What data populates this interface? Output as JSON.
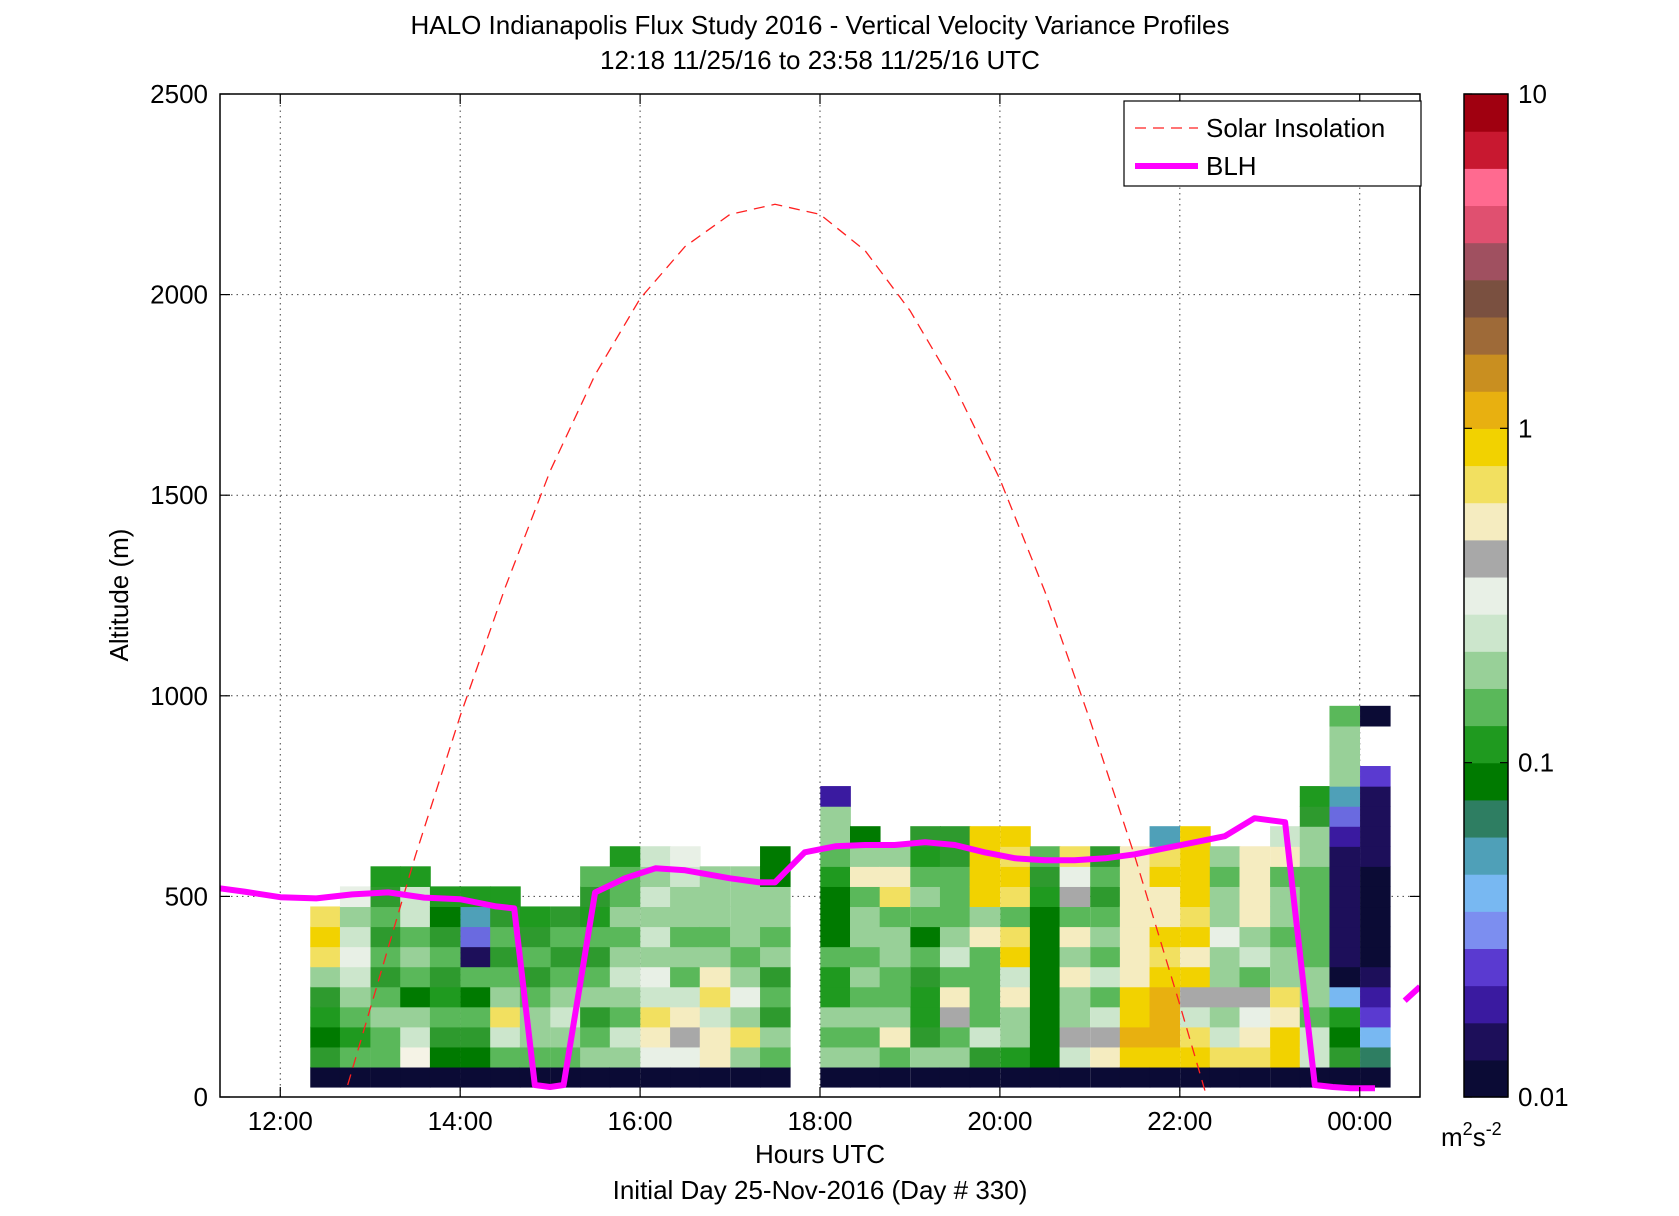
{
  "chart_data": {
    "type": "heatmap",
    "title": "HALO Indianapolis Flux Study 2016 - Vertical Velocity Variance Profiles",
    "subtitle": "12:18 11/25/16 to 23:58 11/25/16  UTC",
    "xlabel": "Hours UTC",
    "xlabel2": "Initial Day 25-Nov-2016 (Day # 330)",
    "ylabel": "Altitude (m)",
    "xlim": [
      11.33,
      24.67
    ],
    "ylim": [
      0,
      2500
    ],
    "x_ticks": [
      12,
      14,
      16,
      18,
      20,
      22,
      24
    ],
    "x_tick_labels": [
      "12:00",
      "14:00",
      "16:00",
      "18:00",
      "20:00",
      "22:00",
      "00:00"
    ],
    "y_ticks": [
      0,
      500,
      1000,
      1500,
      2000,
      2500
    ],
    "y_tick_labels": [
      "0",
      "500",
      "1000",
      "1500",
      "2000",
      "2500"
    ],
    "grid": true,
    "legend_position": "top-right",
    "legend": [
      {
        "label": "Solar Insolation",
        "style": "dashed",
        "color": "#ff2020"
      },
      {
        "label": "BLH",
        "style": "solid",
        "color": "#ff00ff"
      }
    ],
    "colorbar": {
      "scale": "log",
      "min": 0.01,
      "max": 10,
      "ticks": [
        10,
        1,
        0.1,
        0.01
      ],
      "tick_labels": [
        "10",
        "1",
        "0.1",
        "0.01"
      ],
      "unit_base": "m",
      "unit_sup1": "2",
      "unit_s": "s",
      "unit_sup2": "-2",
      "colors": [
        "#0b0b35",
        "#1d0f5a",
        "#3a1aa0",
        "#5a3ad0",
        "#7c8ef0",
        "#78b8f2",
        "#4fa0b8",
        "#2e7e62",
        "#007a00",
        "#1f9a1f",
        "#5ab85a",
        "#98d098",
        "#cce6cc",
        "#e8f0e6",
        "#a8a8a8",
        "#f5ecc0",
        "#f2e060",
        "#f2d200",
        "#e8b010",
        "#c98f20",
        "#9e6a38",
        "#7a5040",
        "#a05060",
        "#e05070",
        "#ff6a90",
        "#c81830",
        "#a00010"
      ]
    },
    "cell_width_hours": 0.333,
    "cell_height_m": 50,
    "columns": [
      {
        "t": 12.5,
        "cells": [
          "#0b0b35",
          "#2e9a2e",
          "#007a00",
          "#1f9a1f",
          "#2e9a2e",
          "#98d098",
          "#f2e060",
          "#f2d200",
          "#f2e060"
        ]
      },
      {
        "t": 12.83,
        "cells": [
          "#0b0b35",
          "#5ab85a",
          "#1f9a1f",
          "#5ab85a",
          "#98d098",
          "#cce6cc",
          "#e8f0e6",
          "#cce6cc",
          "#98d098",
          "#e8f0e6"
        ]
      },
      {
        "t": 13.17,
        "cells": [
          "#0b0b35",
          "#5ab85a",
          "#5ab85a",
          "#98d098",
          "#5ab85a",
          "#2e9a2e",
          "#5ab85a",
          "#2e9a2e",
          "#5ab85a",
          "#2e9a2e",
          "#1f9a1f"
        ]
      },
      {
        "t": 13.5,
        "cells": [
          "#0b0b35",
          "#f5f3e6",
          "#cce6cc",
          "#98d098",
          "#007a00",
          "#5ab85a",
          "#98d098",
          "#5ab85a",
          "#cce6cc",
          "#cce6cc",
          "#1f9a1f"
        ]
      },
      {
        "t": 13.83,
        "cells": [
          "#0b0b35",
          "#007a00",
          "#2e9a2e",
          "#5ab85a",
          "#1f9a1f",
          "#2e9a2e",
          "#5ab85a",
          "#2e9a2e",
          "#007a00",
          "#1f9a1f"
        ]
      },
      {
        "t": 14.17,
        "cells": [
          "#0b0b35",
          "#007a00",
          "#2e9a2e",
          "#5ab85a",
          "#007a00",
          "#5ab85a",
          "#1d0f5a",
          "#6a6ae0",
          "#4fa0b8",
          "#1f9a1f"
        ]
      },
      {
        "t": 14.5,
        "cells": [
          "#0b0b35",
          "#5ab85a",
          "#cce6cc",
          "#f2e060",
          "#98d098",
          "#5ab85a",
          "#2e9a2e",
          "#5ab85a",
          "#2e9a2e",
          "#1f9a1f"
        ]
      },
      {
        "t": 14.83,
        "cells": [
          "#0b0b35",
          "#5ab85a",
          "#98d098",
          "#98d098",
          "#5ab85a",
          "#2e9a2e",
          "#5ab85a",
          "#2e9a2e",
          "#1f9a1f"
        ]
      },
      {
        "t": 15.17,
        "cells": [
          "#0b0b35",
          "#5ab85a",
          "#98d098",
          "#cce6cc",
          "#98d098",
          "#5ab85a",
          "#2e9a2e",
          "#5ab85a",
          "#2e9a2e"
        ]
      },
      {
        "t": 15.5,
        "cells": [
          "#0b0b35",
          "#98d098",
          "#5ab85a",
          "#2e9a2e",
          "#98d098",
          "#5ab85a",
          "#2e9a2e",
          "#5ab85a",
          "#1f9a1f",
          "#2e9a2e",
          "#5ab85a"
        ]
      },
      {
        "t": 15.83,
        "cells": [
          "#0b0b35",
          "#98d098",
          "#cce6cc",
          "#5ab85a",
          "#98d098",
          "#cce6cc",
          "#98d098",
          "#5ab85a",
          "#98d098",
          "#5ab85a",
          "#5ab85a",
          "#1f9a1f"
        ]
      },
      {
        "t": 16.17,
        "cells": [
          "#0b0b35",
          "#e8f0e6",
          "#f5ecc0",
          "#f2e060",
          "#cce6cc",
          "#e8f0e6",
          "#98d098",
          "#cce6cc",
          "#98d098",
          "#cce6cc",
          "#98d098",
          "#cce6cc"
        ]
      },
      {
        "t": 16.5,
        "cells": [
          "#0b0b35",
          "#e8f0e6",
          "#a8a8a8",
          "#f5ecc0",
          "#cce6cc",
          "#5ab85a",
          "#98d098",
          "#5ab85a",
          "#98d098",
          "#98d098",
          "#cce6cc",
          "#e8f0e6"
        ]
      },
      {
        "t": 16.83,
        "cells": [
          "#0b0b35",
          "#f5ecc0",
          "#f5ecc0",
          "#cce6cc",
          "#f2e060",
          "#f5ecc0",
          "#98d098",
          "#5ab85a",
          "#98d098",
          "#98d098",
          "#98d098"
        ]
      },
      {
        "t": 17.17,
        "cells": [
          "#0b0b35",
          "#98d098",
          "#f2e060",
          "#98d098",
          "#e8f0e6",
          "#98d098",
          "#5ab85a",
          "#98d098",
          "#98d098",
          "#98d098",
          "#98d098"
        ]
      },
      {
        "t": 17.5,
        "cells": [
          "#0b0b35",
          "#5ab85a",
          "#98d098",
          "#2e9a2e",
          "#5ab85a",
          "#2e9a2e",
          "#98d098",
          "#5ab85a",
          "#98d098",
          "#98d098",
          "#007a00",
          "#007a00"
        ]
      },
      {
        "t": 18.17,
        "cells": [
          "#0b0b35",
          "#98d098",
          "#5ab85a",
          "#98d098",
          "#1f9a1f",
          "#1f9a1f",
          "#5ab85a",
          "#007a00",
          "#007a00",
          "#007a00",
          "#1f9a1f",
          "#5ab85a",
          "#98d098",
          "#98d098",
          "#3a1aa0"
        ]
      },
      {
        "t": 18.5,
        "cells": [
          "#0b0b35",
          "#98d098",
          "#5ab85a",
          "#98d098",
          "#5ab85a",
          "#98d098",
          "#5ab85a",
          "#98d098",
          "#98d098",
          "#5ab85a",
          "#f5ecc0",
          "#98d098",
          "#007a00"
        ]
      },
      {
        "t": 18.83,
        "cells": [
          "#0b0b35",
          "#5ab85a",
          "#f5ecc0",
          "#98d098",
          "#5ab85a",
          "#5ab85a",
          "#98d098",
          "#98d098",
          "#5ab85a",
          "#f2e060",
          "#f5ecc0",
          "#98d098"
        ]
      },
      {
        "t": 19.17,
        "cells": [
          "#0b0b35",
          "#98d098",
          "#2e9a2e",
          "#1f9a1f",
          "#1f9a1f",
          "#2e9a2e",
          "#5ab85a",
          "#007a00",
          "#5ab85a",
          "#98d098",
          "#5ab85a",
          "#1f9a1f",
          "#2e9a2e"
        ]
      },
      {
        "t": 19.5,
        "cells": [
          "#0b0b35",
          "#98d098",
          "#5ab85a",
          "#a8a8a8",
          "#f5ecc0",
          "#5ab85a",
          "#cce6cc",
          "#98d098",
          "#5ab85a",
          "#5ab85a",
          "#5ab85a",
          "#2e9a2e",
          "#2e9a2e"
        ]
      },
      {
        "t": 19.83,
        "cells": [
          "#0b0b35",
          "#2e9a2e",
          "#cce6cc",
          "#5ab85a",
          "#5ab85a",
          "#5ab85a",
          "#5ab85a",
          "#f5ecc0",
          "#98d098",
          "#f2d200",
          "#f2d200",
          "#f2d200",
          "#f2d200"
        ]
      },
      {
        "t": 20.17,
        "cells": [
          "#0b0b35",
          "#1f9a1f",
          "#98d098",
          "#98d098",
          "#f5ecc0",
          "#cce6cc",
          "#f2d200",
          "#f2e060",
          "#5ab85a",
          "#f2e060",
          "#f2d200",
          "#f2e060",
          "#f2d200"
        ]
      },
      {
        "t": 20.5,
        "cells": [
          "#0b0b35",
          "#007a00",
          "#007a00",
          "#007a00",
          "#007a00",
          "#007a00",
          "#007a00",
          "#007a00",
          "#007a00",
          "#1f9a1f",
          "#2e9a2e",
          "#5ab85a"
        ]
      },
      {
        "t": 20.83,
        "cells": [
          "#0b0b35",
          "#cce6cc",
          "#a8a8a8",
          "#98d098",
          "#98d098",
          "#f5ecc0",
          "#98d098",
          "#f5ecc0",
          "#5ab85a",
          "#a8a8a8",
          "#e8f0e6",
          "#f2e060"
        ]
      },
      {
        "t": 21.17,
        "cells": [
          "#0b0b35",
          "#f5ecc0",
          "#a8a8a8",
          "#cce6cc",
          "#5ab85a",
          "#cce6cc",
          "#5ab85a",
          "#98d098",
          "#5ab85a",
          "#2e9a2e",
          "#5ab85a",
          "#2e9a2e"
        ]
      },
      {
        "t": 21.5,
        "cells": [
          "#0b0b35",
          "#f2d200",
          "#e8b010",
          "#f2d200",
          "#f2d200",
          "#f5ecc0",
          "#f5ecc0",
          "#f5ecc0",
          "#f5ecc0",
          "#f5ecc0",
          "#f5ecc0",
          "#f5ecc0"
        ]
      },
      {
        "t": 21.83,
        "cells": [
          "#0b0b35",
          "#f2d200",
          "#e8b010",
          "#e8b010",
          "#e8b010",
          "#f2d200",
          "#f2e060",
          "#f2d200",
          "#f5ecc0",
          "#f5ecc0",
          "#f2d200",
          "#f2e060",
          "#4fa0b8"
        ]
      },
      {
        "t": 22.17,
        "cells": [
          "#0b0b35",
          "#f2d200",
          "#f2e060",
          "#cce6cc",
          "#a8a8a8",
          "#f2d200",
          "#f5ecc0",
          "#f2d200",
          "#f2e060",
          "#f2d200",
          "#f2d200",
          "#f2d200",
          "#f2d200"
        ]
      },
      {
        "t": 22.5,
        "cells": [
          "#0b0b35",
          "#f2e060",
          "#cce6cc",
          "#98d098",
          "#a8a8a8",
          "#98d098",
          "#98d098",
          "#e8f0e6",
          "#98d098",
          "#98d098",
          "#5ab85a",
          "#98d098"
        ]
      },
      {
        "t": 22.83,
        "cells": [
          "#0b0b35",
          "#f2e060",
          "#f5ecc0",
          "#e8f0e6",
          "#a8a8a8",
          "#5ab85a",
          "#cce6cc",
          "#98d098",
          "#f5ecc0",
          "#f5ecc0",
          "#f5ecc0",
          "#f5ecc0"
        ]
      },
      {
        "t": 23.17,
        "cells": [
          "#0b0b35",
          "#f2d200",
          "#f2d200",
          "#f5ecc0",
          "#f2e060",
          "#98d098",
          "#98d098",
          "#5ab85a",
          "#98d098",
          "#98d098",
          "#5ab85a",
          "#f5ecc0",
          "#cce6cc"
        ]
      },
      {
        "t": 23.5,
        "cells": [
          "#0b0b35",
          "#cce6cc",
          "#cce6cc",
          "#5ab85a",
          "#98d098",
          "#98d098",
          "#5ab85a",
          "#5ab85a",
          "#5ab85a",
          "#5ab85a",
          "#5ab85a",
          "#98d098",
          "#98d098",
          "#2e9a2e",
          "#1f9a1f"
        ]
      },
      {
        "t": 23.83,
        "cells": [
          "#0b0b35",
          "#2e9a2e",
          "#007a00",
          "#1f9a1f",
          "#78b8f2",
          "#0b0b35",
          "#1d0f5a",
          "#1d0f5a",
          "#1d0f5a",
          "#1d0f5a",
          "#1d0f5a",
          "#1d0f5a",
          "#3a1aa0",
          "#6a6ae0",
          "#4fa0b8",
          "#98d098",
          "#98d098",
          "#98d098",
          "#5ab85a"
        ]
      },
      {
        "t": 24.17,
        "cells": [
          "#0b0b35",
          "#2e7e62",
          "#78b8f2",
          "#5a3ad0",
          "#3a1aa0",
          "#1d0f5a",
          "#0b0b35",
          "#0b0b35",
          "#0b0b35",
          "#0b0b35",
          "#0b0b35",
          "#1d0f5a",
          "#1d0f5a",
          "#1d0f5a",
          "#1d0f5a",
          "#5a3ad0",
          null,
          null,
          "#0b0b35"
        ]
      }
    ],
    "missing_ground_columns": [
      17.83,
      21.83
    ],
    "solar_insolation": {
      "x": [
        12.75,
        13.0,
        13.5,
        14.0,
        14.5,
        15.0,
        15.5,
        16.0,
        16.5,
        17.0,
        17.5,
        18.0,
        18.5,
        19.0,
        19.5,
        20.0,
        20.5,
        21.0,
        21.5,
        22.0,
        22.3
      ],
      "y": [
        30,
        220,
        600,
        950,
        1270,
        1560,
        1800,
        1990,
        2120,
        2200,
        2225,
        2200,
        2110,
        1960,
        1770,
        1540,
        1260,
        940,
        600,
        230,
        0
      ]
    },
    "blh": {
      "segments": [
        {
          "x": [
            11.33,
            11.6,
            12.0,
            12.4,
            12.8,
            13.2,
            13.6,
            14.0,
            14.4,
            14.6,
            14.83,
            15.0,
            15.15,
            15.5,
            15.83,
            16.17,
            16.5,
            17.0,
            17.33,
            17.5,
            17.83,
            18.17,
            18.5,
            18.83,
            19.17,
            19.5,
            19.83,
            20.17,
            20.5,
            20.83,
            21.17,
            21.5,
            21.83,
            22.17,
            22.5,
            22.83,
            23.17,
            23.5,
            23.7,
            23.9,
            24.17
          ],
          "y": [
            520,
            512,
            498,
            495,
            505,
            510,
            497,
            493,
            475,
            470,
            30,
            25,
            30,
            510,
            545,
            570,
            565,
            545,
            535,
            535,
            610,
            625,
            628,
            628,
            635,
            628,
            610,
            595,
            590,
            590,
            595,
            605,
            620,
            635,
            650,
            695,
            685,
            30,
            25,
            22,
            22
          ]
        },
        {
          "x": [
            24.5,
            24.67
          ],
          "y": [
            240,
            275
          ]
        }
      ]
    }
  }
}
